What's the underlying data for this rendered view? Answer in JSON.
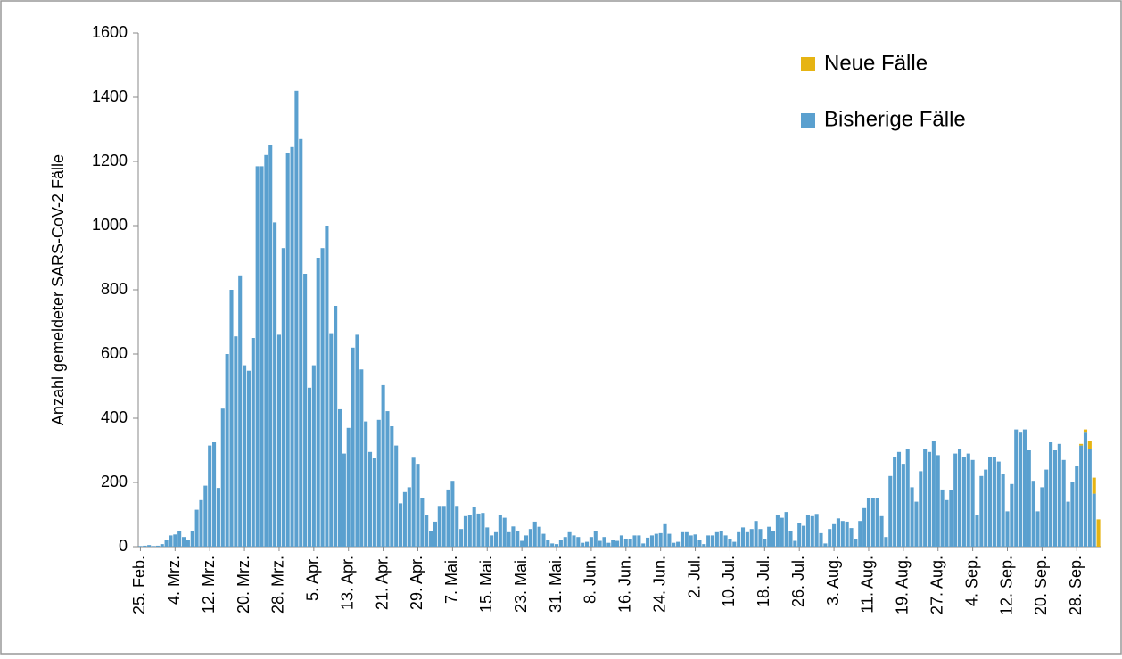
{
  "chart_data": {
    "type": "stacked_bar",
    "y_label": "Anzahl gemeldeter SARS-CoV-2 Fälle",
    "categories": [
      "25. Feb.",
      null,
      null,
      null,
      null,
      null,
      null,
      null,
      "4. Mrz.",
      null,
      null,
      null,
      null,
      null,
      null,
      null,
      "12. Mrz.",
      null,
      null,
      null,
      null,
      null,
      null,
      null,
      "20. Mrz.",
      null,
      null,
      null,
      null,
      null,
      null,
      null,
      "28. Mrz.",
      null,
      null,
      null,
      null,
      null,
      null,
      null,
      "5. Apr.",
      null,
      null,
      null,
      null,
      null,
      null,
      null,
      "13. Apr.",
      null,
      null,
      null,
      null,
      null,
      null,
      null,
      "21. Apr.",
      null,
      null,
      null,
      null,
      null,
      null,
      null,
      "29. Apr.",
      null,
      null,
      null,
      null,
      null,
      null,
      null,
      "7. Mai.",
      null,
      null,
      null,
      null,
      null,
      null,
      null,
      "15. Mai.",
      null,
      null,
      null,
      null,
      null,
      null,
      null,
      "23. Mai.",
      null,
      null,
      null,
      null,
      null,
      null,
      null,
      "31. Mai.",
      null,
      null,
      null,
      null,
      null,
      null,
      null,
      "8. Jun.",
      null,
      null,
      null,
      null,
      null,
      null,
      null,
      "16. Jun.",
      null,
      null,
      null,
      null,
      null,
      null,
      null,
      "24. Jun.",
      null,
      null,
      null,
      null,
      null,
      null,
      null,
      "2. Jul.",
      null,
      null,
      null,
      null,
      null,
      null,
      null,
      "10. Jul.",
      null,
      null,
      null,
      null,
      null,
      null,
      null,
      "18. Jul.",
      null,
      null,
      null,
      null,
      null,
      null,
      null,
      "26. Jul.",
      null,
      null,
      null,
      null,
      null,
      null,
      null,
      "3. Aug.",
      null,
      null,
      null,
      null,
      null,
      null,
      null,
      "11. Aug.",
      null,
      null,
      null,
      null,
      null,
      null,
      null,
      "19. Aug.",
      null,
      null,
      null,
      null,
      null,
      null,
      null,
      "27. Aug.",
      null,
      null,
      null,
      null,
      null,
      null,
      null,
      "4. Sep.",
      null,
      null,
      null,
      null,
      null,
      null,
      null,
      "12. Sep.",
      null,
      null,
      null,
      null,
      null,
      null,
      null,
      "20. Sep.",
      null,
      null,
      null,
      null,
      null,
      null,
      null,
      "28. Sep.",
      null,
      null,
      null,
      null,
      null
    ],
    "series": [
      {
        "name": "Bisherige Fälle",
        "color": "#5aa0cf",
        "values": [
          2,
          3,
          5,
          2,
          3,
          8,
          20,
          35,
          38,
          50,
          30,
          22,
          50,
          115,
          145,
          190,
          315,
          325,
          183,
          430,
          600,
          800,
          655,
          845,
          565,
          548,
          650,
          1185,
          1185,
          1220,
          1250,
          1010,
          660,
          930,
          1225,
          1245,
          1420,
          1270,
          850,
          495,
          565,
          900,
          930,
          1000,
          665,
          750,
          428,
          290,
          370,
          620,
          660,
          552,
          390,
          295,
          275,
          395,
          503,
          422,
          375,
          315,
          135,
          170,
          185,
          277,
          258,
          152,
          100,
          48,
          78,
          127,
          127,
          178,
          205,
          127,
          55,
          95,
          100,
          123,
          103,
          105,
          60,
          35,
          45,
          100,
          90,
          45,
          63,
          50,
          18,
          35,
          55,
          78,
          62,
          40,
          22,
          10,
          8,
          20,
          30,
          45,
          35,
          30,
          12,
          15,
          30,
          50,
          18,
          30,
          12,
          20,
          18,
          35,
          25,
          25,
          35,
          35,
          10,
          28,
          35,
          40,
          42,
          70,
          40,
          12,
          15,
          45,
          45,
          35,
          38,
          20,
          8,
          35,
          35,
          45,
          50,
          35,
          25,
          15,
          45,
          60,
          45,
          55,
          80,
          55,
          25,
          62,
          50,
          100,
          90,
          108,
          50,
          18,
          75,
          65,
          100,
          95,
          102,
          42,
          10,
          55,
          70,
          88,
          80,
          78,
          58,
          25,
          80,
          120,
          150,
          150,
          150,
          95,
          30,
          220,
          280,
          295,
          258,
          305,
          185,
          140,
          235,
          305,
          295,
          330,
          285,
          178,
          145,
          175,
          290,
          305,
          280,
          290,
          270,
          100,
          220,
          240,
          280,
          280,
          265,
          225,
          110,
          195,
          365,
          355,
          365,
          300,
          205,
          110,
          185,
          240,
          325,
          300,
          320,
          270,
          140,
          200,
          250,
          315,
          355,
          305,
          165,
          0
        ]
      },
      {
        "name": "Neue Fälle",
        "color": "#e6b413",
        "values": [
          0,
          0,
          0,
          0,
          0,
          0,
          0,
          0,
          0,
          0,
          0,
          0,
          0,
          0,
          0,
          0,
          0,
          0,
          0,
          0,
          0,
          0,
          0,
          0,
          0,
          0,
          0,
          0,
          0,
          0,
          0,
          0,
          0,
          0,
          0,
          0,
          0,
          0,
          0,
          0,
          0,
          0,
          0,
          0,
          0,
          0,
          0,
          0,
          0,
          0,
          0,
          0,
          0,
          0,
          0,
          0,
          0,
          0,
          0,
          0,
          0,
          0,
          0,
          0,
          0,
          0,
          0,
          0,
          0,
          0,
          0,
          0,
          0,
          0,
          0,
          0,
          0,
          0,
          0,
          0,
          0,
          0,
          0,
          0,
          0,
          0,
          0,
          0,
          0,
          0,
          0,
          0,
          0,
          0,
          0,
          0,
          0,
          0,
          0,
          0,
          0,
          0,
          0,
          0,
          0,
          0,
          0,
          0,
          0,
          0,
          0,
          0,
          0,
          0,
          0,
          0,
          0,
          0,
          0,
          0,
          0,
          0,
          0,
          0,
          0,
          0,
          0,
          0,
          0,
          0,
          0,
          0,
          0,
          0,
          0,
          0,
          0,
          0,
          0,
          0,
          0,
          0,
          0,
          0,
          0,
          0,
          0,
          0,
          0,
          0,
          0,
          0,
          0,
          0,
          0,
          0,
          0,
          0,
          0,
          0,
          0,
          0,
          0,
          0,
          0,
          0,
          0,
          0,
          0,
          0,
          0,
          0,
          0,
          0,
          0,
          0,
          0,
          0,
          0,
          0,
          0,
          0,
          0,
          0,
          0,
          0,
          0,
          0,
          0,
          0,
          0,
          0,
          0,
          0,
          0,
          0,
          0,
          0,
          0,
          0,
          0,
          0,
          0,
          0,
          0,
          0,
          0,
          0,
          0,
          0,
          0,
          0,
          0,
          0,
          0,
          0,
          0,
          5,
          10,
          25,
          50,
          85
        ]
      }
    ],
    "ylim": [
      0,
      1600
    ],
    "yticks": [
      0,
      200,
      400,
      600,
      800,
      1000,
      1200,
      1400,
      1600
    ],
    "grid": false,
    "legend": "upper right",
    "stacked": true
  }
}
